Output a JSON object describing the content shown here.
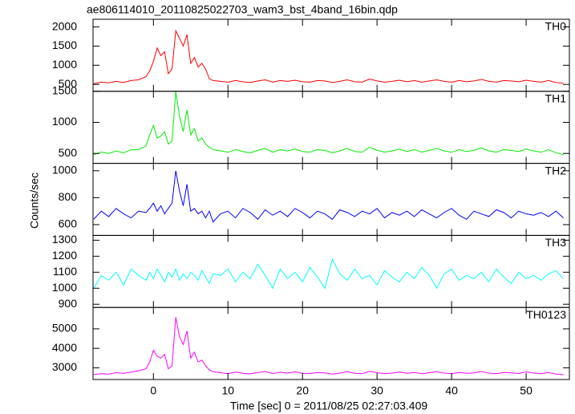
{
  "chart_data": {
    "type": "line",
    "title": "ae806114010_20110825022703_wam3_bst_4band_16bin.qdp",
    "x_label": "Time [sec] 0 = 2011/08/25 02:27:03.409",
    "y_label": "Counts/sec",
    "xlim": [
      -8.1,
      55.8
    ],
    "xticks": [
      0,
      10,
      20,
      30,
      40,
      50
    ],
    "x": [
      -8,
      -7,
      -6,
      -5,
      -4,
      -3,
      -2,
      -1,
      -0.5,
      0,
      0.5,
      1,
      1.5,
      2,
      2.5,
      3,
      3.5,
      4,
      4.5,
      5,
      5.5,
      6,
      6.5,
      7,
      7.5,
      8,
      9,
      10,
      11,
      12,
      13,
      14,
      15,
      16,
      17,
      18,
      19,
      20,
      21,
      22,
      23,
      24,
      25,
      26,
      27,
      28,
      29,
      30,
      31,
      32,
      33,
      34,
      35,
      36,
      37,
      38,
      39,
      40,
      41,
      42,
      43,
      44,
      45,
      46,
      47,
      48,
      49,
      50,
      51,
      52,
      53,
      54,
      55
    ],
    "series": [
      {
        "name": "TH0",
        "color": "#ff0000",
        "ylim": [
          320,
          2200
        ],
        "yticks": [
          500,
          1000,
          1500,
          2000
        ],
        "values": [
          520,
          560,
          540,
          580,
          550,
          600,
          620,
          700,
          850,
          1100,
          1450,
          1250,
          1350,
          780,
          900,
          1900,
          1700,
          1500,
          1800,
          1050,
          1200,
          950,
          1050,
          900,
          650,
          600,
          580,
          560,
          600,
          570,
          550,
          590,
          620,
          560,
          600,
          580,
          610,
          570,
          560,
          600,
          590,
          550,
          580,
          620,
          570,
          560,
          640,
          590,
          560,
          580,
          610,
          570,
          600,
          560,
          590,
          620,
          580,
          560,
          600,
          570,
          590,
          630,
          580,
          560,
          600,
          590,
          570,
          610,
          580,
          560,
          600,
          550,
          530
        ]
      },
      {
        "name": "TH1",
        "color": "#00ee00",
        "ylim": [
          340,
          1500
        ],
        "yticks": [
          500,
          1000,
          1500
        ],
        "values": [
          480,
          520,
          500,
          540,
          510,
          560,
          560,
          620,
          800,
          950,
          750,
          780,
          850,
          650,
          700,
          1500,
          1100,
          850,
          1200,
          800,
          900,
          700,
          750,
          650,
          600,
          560,
          540,
          520,
          560,
          530,
          510,
          550,
          580,
          520,
          560,
          540,
          570,
          530,
          520,
          560,
          550,
          510,
          540,
          580,
          530,
          520,
          600,
          550,
          520,
          540,
          570,
          530,
          560,
          520,
          550,
          580,
          540,
          520,
          560,
          530,
          550,
          590,
          540,
          520,
          560,
          550,
          530,
          570,
          540,
          520,
          560,
          510,
          480
        ]
      },
      {
        "name": "TH2",
        "color": "#0000ff",
        "ylim": [
          520,
          1055
        ],
        "yticks": [
          600,
          800,
          1000
        ],
        "values": [
          640,
          700,
          660,
          720,
          680,
          650,
          700,
          690,
          720,
          760,
          700,
          740,
          680,
          720,
          760,
          1000,
          850,
          740,
          900,
          700,
          720,
          680,
          700,
          650,
          700,
          620,
          680,
          700,
          650,
          720,
          690,
          640,
          710,
          670,
          700,
          660,
          720,
          690,
          650,
          700,
          680,
          640,
          710,
          690,
          660,
          700,
          680,
          720,
          650,
          690,
          670,
          700,
          660,
          710,
          680,
          650,
          690,
          720,
          670,
          640,
          700,
          680,
          660,
          710,
          690,
          650,
          700,
          680,
          670,
          690,
          660,
          700,
          650
        ]
      },
      {
        "name": "TH3",
        "color": "#00ffff",
        "ylim": [
          880,
          1330
        ],
        "yticks": [
          900,
          1000,
          1100,
          1200,
          1300
        ],
        "values": [
          1000,
          1080,
          1050,
          1100,
          1020,
          1120,
          1080,
          1050,
          1100,
          1060,
          1120,
          1080,
          1040,
          1100,
          1070,
          1120,
          1050,
          1090,
          1060,
          1100,
          1080,
          1050,
          1110,
          1070,
          1030,
          1090,
          1080,
          1120,
          1040,
          1100,
          1060,
          1150,
          1080,
          1000,
          1120,
          1060,
          1100,
          1040,
          1130,
          1070,
          1000,
          1180,
          1090,
          1050,
          1120,
          1060,
          1080,
          1020,
          1110,
          1070,
          1040,
          1100,
          1060,
          1130,
          1080,
          1000,
          1090,
          1120,
          1050,
          1080,
          1060,
          1100,
          1040,
          1120,
          1070,
          1030,
          1100,
          1060,
          1080,
          1050,
          1090,
          1110,
          1060
        ]
      },
      {
        "name": "TH0123",
        "color": "#ff00ff",
        "ylim": [
          2400,
          6100
        ],
        "yticks": [
          3000,
          4000,
          5000
        ],
        "values": [
          2650,
          2700,
          2680,
          2750,
          2720,
          2780,
          2850,
          2950,
          3300,
          3900,
          3600,
          3500,
          3700,
          2950,
          3100,
          5600,
          4600,
          4200,
          4900,
          3500,
          3800,
          3300,
          3400,
          3100,
          2900,
          2800,
          2750,
          2700,
          2780,
          2720,
          2690,
          2760,
          2800,
          2710,
          2770,
          2730,
          2790,
          2720,
          2700,
          2760,
          2740,
          2680,
          2730,
          2800,
          2720,
          2700,
          2820,
          2750,
          2700,
          2730,
          2780,
          2720,
          2760,
          2700,
          2750,
          2800,
          2730,
          2700,
          2760,
          2720,
          2740,
          2810,
          2730,
          2700,
          2760,
          2740,
          2710,
          2790,
          2730,
          2700,
          2760,
          2680,
          2650
        ]
      }
    ]
  }
}
